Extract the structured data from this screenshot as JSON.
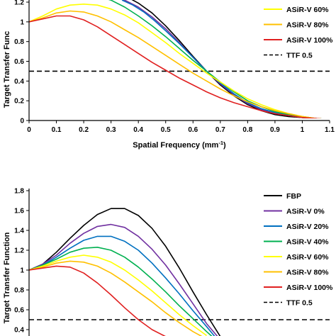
{
  "chart_data": [
    {
      "type": "line",
      "panel": "top",
      "xlabel": "Spatial Frequency (mm",
      "xlabel_sup": "-1",
      "xlabel_close": ")",
      "ylabel": "Target Transfer Func",
      "xlim": [
        0,
        1.1
      ],
      "ylim": [
        0,
        1.2
      ],
      "xticks": [
        0,
        0.1,
        0.2,
        0.3,
        0.4,
        0.5,
        0.6,
        0.7,
        0.8,
        0.9,
        1,
        1.1
      ],
      "xtick_labels": [
        "0",
        "0.1",
        "0.2",
        "0.3",
        "0.4",
        "0.5",
        "0.6",
        "0.7",
        "0.8",
        "0.9",
        "1",
        "1.1"
      ],
      "yticks": [
        0,
        0.2,
        0.4,
        0.6,
        0.8,
        1,
        1.2
      ],
      "ytick_labels": [
        "0",
        "0.2",
        "0.4",
        "0.6",
        "0.8",
        "1",
        "1.2"
      ],
      "legend": [
        "ASiR-V 60%",
        "ASiR-V 80%",
        "ASiR-V 100%",
        "TTF 0.5"
      ],
      "reference_line": {
        "name": "TTF 0.5",
        "y": 0.5,
        "color": "#000000",
        "dash": true
      },
      "series": [
        {
          "name": "FBP",
          "color": "#000000",
          "x": [
            0.33,
            0.36,
            0.4,
            0.45,
            0.5,
            0.55,
            0.6,
            0.65,
            0.7,
            0.75,
            0.8,
            0.85,
            0.9,
            0.95,
            1.0,
            1.05,
            1.1
          ],
          "y": [
            1.27,
            1.25,
            1.19,
            1.09,
            0.96,
            0.81,
            0.65,
            0.5,
            0.36,
            0.25,
            0.16,
            0.1,
            0.06,
            0.04,
            0.03,
            0.02,
            0.01
          ]
        },
        {
          "name": "ASiR-V 0%",
          "color": "#7030a0",
          "x": [
            0.3,
            0.35,
            0.4,
            0.45,
            0.5,
            0.55,
            0.6,
            0.65,
            0.7,
            0.75,
            0.8,
            0.85,
            0.9,
            0.95,
            1.0,
            1.05,
            1.1
          ],
          "y": [
            1.26,
            1.22,
            1.15,
            1.05,
            0.93,
            0.79,
            0.64,
            0.5,
            0.37,
            0.26,
            0.17,
            0.11,
            0.07,
            0.05,
            0.03,
            0.02,
            0.01
          ]
        },
        {
          "name": "ASiR-V 20%",
          "color": "#0070c0",
          "x": [
            0.34,
            0.38,
            0.42,
            0.46,
            0.5,
            0.55,
            0.6,
            0.65,
            0.7,
            0.75,
            0.8,
            0.85,
            0.9,
            0.95,
            1.0,
            1.05,
            1.1
          ],
          "y": [
            1.22,
            1.17,
            1.1,
            1.01,
            0.91,
            0.78,
            0.64,
            0.5,
            0.38,
            0.27,
            0.18,
            0.12,
            0.08,
            0.05,
            0.03,
            0.02,
            0.01
          ]
        },
        {
          "name": "ASiR-V 40%",
          "color": "#00b050",
          "x": [
            0.18,
            0.22,
            0.26,
            0.3,
            0.35,
            0.4,
            0.45,
            0.5,
            0.55,
            0.6,
            0.65,
            0.7,
            0.75,
            0.8,
            0.85,
            0.9,
            0.95,
            1.0,
            1.05,
            1.1
          ],
          "y": [
            1.24,
            1.26,
            1.25,
            1.22,
            1.15,
            1.06,
            0.96,
            0.85,
            0.73,
            0.61,
            0.5,
            0.39,
            0.29,
            0.2,
            0.14,
            0.09,
            0.06,
            0.04,
            0.02,
            0.01
          ]
        },
        {
          "name": "ASiR-V 60%",
          "color": "#ffff00",
          "x": [
            0,
            0.05,
            0.1,
            0.15,
            0.2,
            0.25,
            0.3,
            0.35,
            0.4,
            0.45,
            0.5,
            0.55,
            0.6,
            0.65,
            0.7,
            0.75,
            0.8,
            0.85,
            0.9,
            0.95,
            1.0,
            1.05,
            1.1
          ],
          "y": [
            1.0,
            1.06,
            1.13,
            1.17,
            1.18,
            1.17,
            1.13,
            1.07,
            0.99,
            0.89,
            0.79,
            0.68,
            0.58,
            0.48,
            0.39,
            0.3,
            0.22,
            0.16,
            0.11,
            0.07,
            0.04,
            0.02,
            0.01
          ]
        },
        {
          "name": "ASiR-V 80%",
          "color": "#ffc000",
          "x": [
            0,
            0.05,
            0.1,
            0.15,
            0.2,
            0.25,
            0.3,
            0.35,
            0.4,
            0.45,
            0.5,
            0.55,
            0.6,
            0.65,
            0.7,
            0.75,
            0.8,
            0.85,
            0.9,
            0.95,
            1.0,
            1.05,
            1.1
          ],
          "y": [
            1.0,
            1.04,
            1.09,
            1.11,
            1.1,
            1.06,
            1.0,
            0.92,
            0.84,
            0.75,
            0.66,
            0.57,
            0.48,
            0.4,
            0.32,
            0.25,
            0.19,
            0.14,
            0.1,
            0.07,
            0.04,
            0.02,
            0.01
          ]
        },
        {
          "name": "ASiR-V 100%",
          "color": "#e02020",
          "x": [
            0,
            0.05,
            0.1,
            0.15,
            0.2,
            0.25,
            0.3,
            0.35,
            0.4,
            0.45,
            0.5,
            0.55,
            0.6,
            0.65,
            0.7,
            0.75,
            0.8,
            0.85,
            0.9,
            0.95,
            1.0,
            1.05,
            1.1
          ],
          "y": [
            1.0,
            1.03,
            1.06,
            1.06,
            1.02,
            0.95,
            0.86,
            0.77,
            0.68,
            0.59,
            0.51,
            0.43,
            0.36,
            0.29,
            0.23,
            0.18,
            0.14,
            0.1,
            0.07,
            0.05,
            0.03,
            0.02,
            0.01
          ]
        }
      ]
    },
    {
      "type": "line",
      "panel": "bottom",
      "ylabel": "Target Transfer Function",
      "xlim": [
        0,
        1.1
      ],
      "ylim": [
        0.3,
        1.8
      ],
      "yticks": [
        0.4,
        0.6,
        0.8,
        1,
        1.2,
        1.4,
        1.6,
        1.8
      ],
      "ytick_labels": [
        "0.4",
        "0.6",
        "0.8",
        "1",
        "1.2",
        "1.4",
        "1.6",
        "1.8"
      ],
      "legend": [
        "FBP",
        "ASiR-V 0%",
        "ASiR-V 20%",
        "ASiR-V 40%",
        "ASiR-V 60%",
        "ASiR-V 80%",
        "ASiR-V 100%",
        "TTF 0.5"
      ],
      "reference_line": {
        "name": "TTF 0.5",
        "y": 0.5,
        "color": "#000000",
        "dash": true
      },
      "series": [
        {
          "name": "FBP",
          "color": "#000000",
          "x": [
            0,
            0.05,
            0.1,
            0.15,
            0.2,
            0.25,
            0.3,
            0.35,
            0.4,
            0.45,
            0.5,
            0.55,
            0.6,
            0.65,
            0.7
          ],
          "y": [
            1.0,
            1.06,
            1.18,
            1.32,
            1.45,
            1.56,
            1.62,
            1.62,
            1.55,
            1.42,
            1.24,
            1.02,
            0.78,
            0.55,
            0.33
          ]
        },
        {
          "name": "ASiR-V 0%",
          "color": "#7030a0",
          "x": [
            0,
            0.05,
            0.1,
            0.15,
            0.2,
            0.25,
            0.3,
            0.35,
            0.4,
            0.45,
            0.5,
            0.55,
            0.6,
            0.65,
            0.69
          ],
          "y": [
            1.0,
            1.06,
            1.15,
            1.27,
            1.37,
            1.44,
            1.46,
            1.43,
            1.34,
            1.21,
            1.05,
            0.86,
            0.66,
            0.46,
            0.33
          ]
        },
        {
          "name": "ASiR-V 20%",
          "color": "#0070c0",
          "x": [
            0,
            0.05,
            0.1,
            0.15,
            0.2,
            0.25,
            0.3,
            0.35,
            0.4,
            0.45,
            0.5,
            0.55,
            0.6,
            0.65,
            0.68
          ],
          "y": [
            1.0,
            1.05,
            1.13,
            1.22,
            1.3,
            1.34,
            1.34,
            1.29,
            1.2,
            1.07,
            0.92,
            0.76,
            0.59,
            0.43,
            0.33
          ]
        },
        {
          "name": "ASiR-V 40%",
          "color": "#00b050",
          "x": [
            0,
            0.05,
            0.1,
            0.15,
            0.2,
            0.25,
            0.3,
            0.35,
            0.4,
            0.45,
            0.5,
            0.55,
            0.6,
            0.65,
            0.67
          ],
          "y": [
            1.0,
            1.05,
            1.11,
            1.18,
            1.22,
            1.23,
            1.2,
            1.13,
            1.03,
            0.91,
            0.78,
            0.64,
            0.51,
            0.38,
            0.33
          ]
        },
        {
          "name": "ASiR-V 60%",
          "color": "#ffff00",
          "x": [
            0,
            0.05,
            0.1,
            0.15,
            0.2,
            0.25,
            0.3,
            0.35,
            0.4,
            0.45,
            0.5,
            0.55,
            0.6,
            0.65
          ],
          "y": [
            1.0,
            1.04,
            1.09,
            1.13,
            1.15,
            1.13,
            1.08,
            1.0,
            0.9,
            0.79,
            0.67,
            0.55,
            0.44,
            0.34
          ]
        },
        {
          "name": "ASiR-V 80%",
          "color": "#ffc000",
          "x": [
            0,
            0.05,
            0.1,
            0.15,
            0.2,
            0.25,
            0.3,
            0.35,
            0.4,
            0.45,
            0.5,
            0.55,
            0.6,
            0.64
          ],
          "y": [
            1.0,
            1.03,
            1.07,
            1.09,
            1.08,
            1.04,
            0.97,
            0.88,
            0.78,
            0.68,
            0.57,
            0.47,
            0.38,
            0.32
          ]
        },
        {
          "name": "ASiR-V 100%",
          "color": "#e02020",
          "x": [
            0,
            0.05,
            0.1,
            0.15,
            0.2,
            0.25,
            0.3,
            0.35,
            0.4,
            0.45,
            0.5
          ],
          "y": [
            1.0,
            1.02,
            1.04,
            1.03,
            0.97,
            0.87,
            0.75,
            0.62,
            0.5,
            0.4,
            0.33
          ]
        }
      ]
    }
  ]
}
